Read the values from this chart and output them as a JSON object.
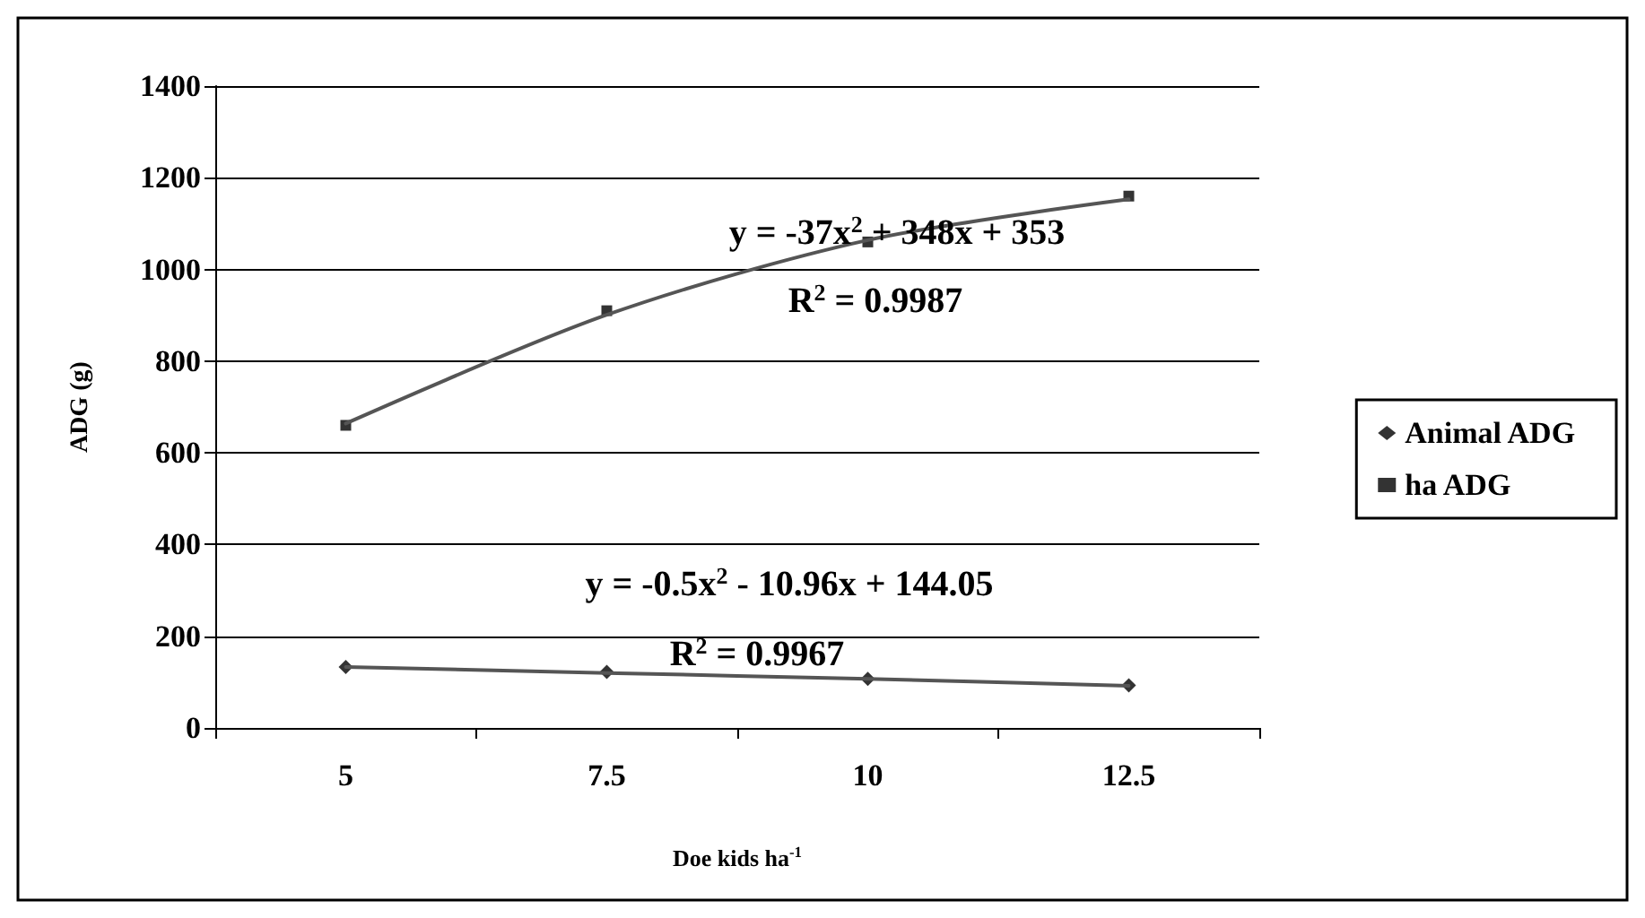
{
  "chart_data": {
    "type": "scatter",
    "xlabel": "Doe kids ha$^{-1}$",
    "ylabel": "ADG (g)",
    "categories": [
      "5",
      "7.5",
      "10",
      "12.5"
    ],
    "series": [
      {
        "name": "Animal ADG",
        "marker": "diamond",
        "color": "#000000",
        "values": [
          133,
          122,
          107,
          93
        ]
      },
      {
        "name": "ha ADG",
        "marker": "square",
        "color": "#000000",
        "values": [
          660,
          910,
          1060,
          1160
        ]
      },
      {
        "type": "line",
        "marker": "none",
        "color": "#555555",
        "values": [
          133,
          120,
          107,
          92
        ]
      },
      {
        "type": "line",
        "marker": "none",
        "color": "#555555",
        "values": [
          664,
          901,
          1064,
          1153
        ]
      }
    ],
    "ylim": [
      0,
      1400
    ],
    "yticks": [
      0,
      200,
      400,
      600,
      800,
      1000,
      1200,
      1400
    ],
    "grid": "y",
    "legend": "right",
    "annotations": [
      "y = -37x$^{2}$ + 348x + 353",
      "R$^{2}$ = 0.9987",
      "y = -0.5x$^{2}$ - 10.96x + 144.05",
      "R$^{2}$ = 0.9967"
    ]
  }
}
